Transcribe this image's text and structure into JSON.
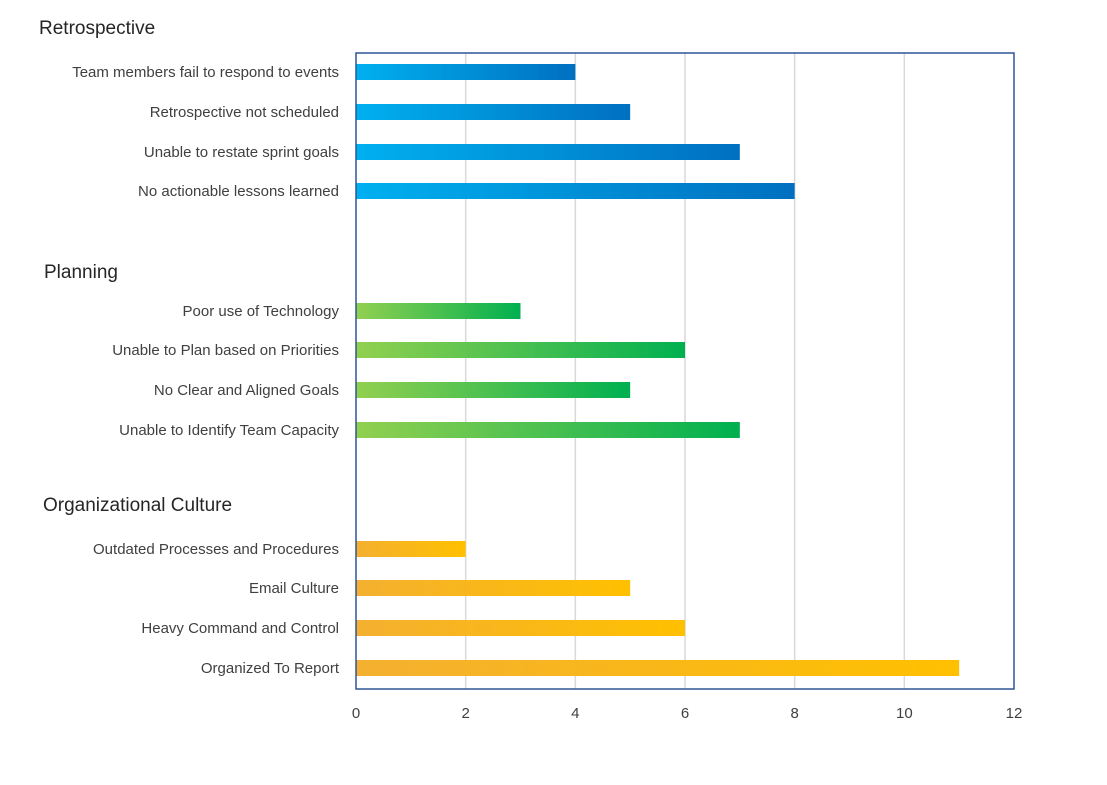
{
  "chart_data": {
    "type": "bar",
    "orientation": "horizontal",
    "xlim": [
      0,
      12
    ],
    "x_ticks": [
      0,
      2,
      4,
      6,
      8,
      10,
      12
    ],
    "grid": "vertical",
    "groups": [
      {
        "title": "Retrospective",
        "color_start": "#00B0F0",
        "color_end": "#0070C0",
        "items": [
          {
            "label": "Team members fail to respond to events",
            "value": 4
          },
          {
            "label": "Retrospective not scheduled",
            "value": 5
          },
          {
            "label": "Unable to restate sprint goals",
            "value": 7
          },
          {
            "label": "No actionable lessons learned",
            "value": 8
          }
        ]
      },
      {
        "title": "Planning",
        "color_start": "#92D050",
        "color_end": "#00B050",
        "items": [
          {
            "label": "Poor use of Technology",
            "value": 3
          },
          {
            "label": "Unable to Plan based on Priorities",
            "value": 6
          },
          {
            "label": "No Clear and Aligned Goals",
            "value": 5
          },
          {
            "label": "Unable to Identify Team Capacity",
            "value": 7
          }
        ]
      },
      {
        "title": "Organizational Culture",
        "color_start": "#F4B030",
        "color_end": "#FFC000",
        "items": [
          {
            "label": "Outdated Processes and Procedures",
            "value": 2
          },
          {
            "label": "Email Culture",
            "value": 5
          },
          {
            "label": "Heavy Command and Control",
            "value": 6
          },
          {
            "label": "Organized To Report",
            "value": 11
          }
        ]
      }
    ]
  }
}
